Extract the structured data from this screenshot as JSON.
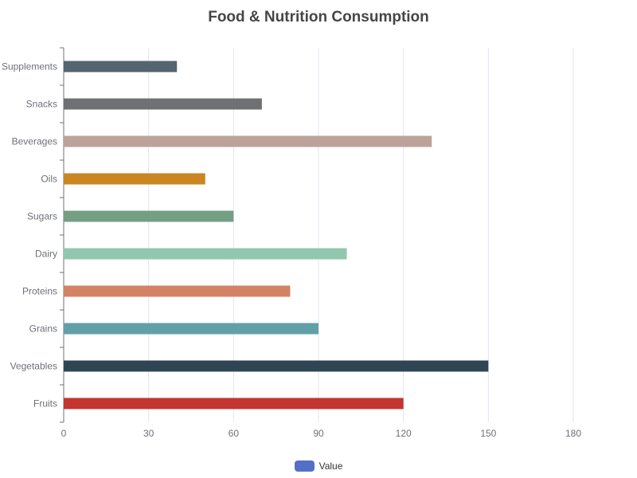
{
  "chart_data": {
    "type": "bar",
    "orientation": "horizontal",
    "title": "Food & Nutrition Consumption",
    "categories": [
      "Fruits",
      "Vegetables",
      "Grains",
      "Proteins",
      "Dairy",
      "Sugars",
      "Oils",
      "Beverages",
      "Snacks",
      "Supplements"
    ],
    "series": [
      {
        "name": "Value",
        "values": [
          120,
          150,
          90,
          80,
          100,
          60,
          50,
          130,
          70,
          40
        ]
      }
    ],
    "bar_colors": [
      "#c23531",
      "#2f4554",
      "#61a0a8",
      "#d48265",
      "#91c7ae",
      "#749f83",
      "#ca8622",
      "#bda29a",
      "#6e7074",
      "#546570"
    ],
    "x_ticks": [
      "0",
      "30",
      "60",
      "90",
      "120",
      "150",
      "180"
    ],
    "xlim": [
      0,
      180
    ],
    "grid": true,
    "legend_position": "bottom-center",
    "legend_color": "#5470c6"
  }
}
